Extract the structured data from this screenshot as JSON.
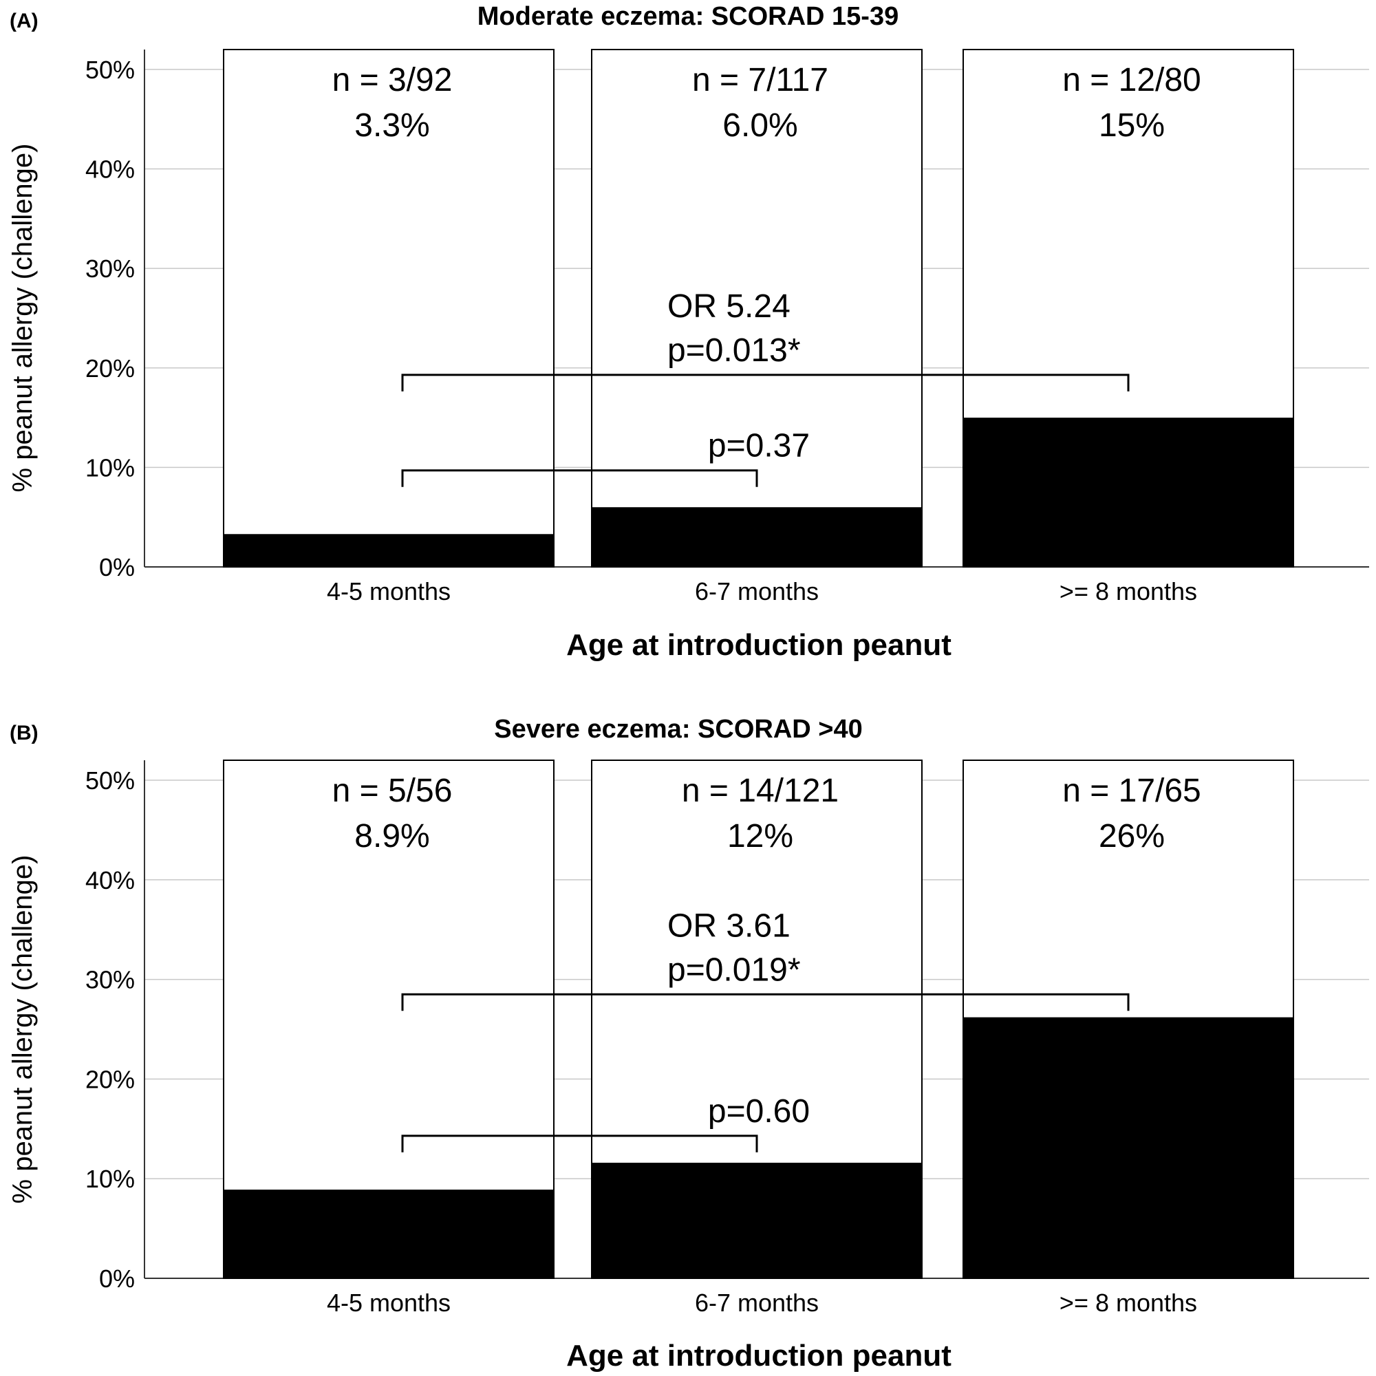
{
  "chart_data": [
    {
      "type": "bar",
      "panel": "(A)",
      "title": "Moderate eczema: SCORAD 15-39",
      "xlabel": "Age at introduction peanut",
      "ylabel": "% peanut allergy (challenge)",
      "ylim": [
        0,
        52
      ],
      "yticks": [
        "0%",
        "10%",
        "20%",
        "30%",
        "40%",
        "50%"
      ],
      "ytick_values": [
        0,
        10,
        20,
        30,
        40,
        50
      ],
      "grid": true,
      "categories": [
        "4-5 months",
        "6-7 months",
        ">= 8 months"
      ],
      "values": [
        3.3,
        6.0,
        15
      ],
      "bar_labels": [
        {
          "n": "n = 3/92",
          "pct": "3.3%"
        },
        {
          "n": "n = 7/117",
          "pct": "6.0%"
        },
        {
          "n": "n = 12/80",
          "pct": "15%"
        }
      ],
      "comparisons": [
        {
          "from": 0,
          "to": 2,
          "level": 19.3,
          "lines": [
            "OR 5.24",
            "p=0.013*"
          ]
        },
        {
          "from": 0,
          "to": 1,
          "level": 9.7,
          "lines": [
            "p=0.37"
          ]
        }
      ]
    },
    {
      "type": "bar",
      "panel": "(B)",
      "title": "Severe eczema: SCORAD >40",
      "xlabel": "Age at introduction peanut",
      "ylabel": "% peanut allergy (challenge)",
      "ylim": [
        0,
        52
      ],
      "yticks": [
        "0%",
        "10%",
        "20%",
        "30%",
        "40%",
        "50%"
      ],
      "ytick_values": [
        0,
        10,
        20,
        30,
        40,
        50
      ],
      "grid": true,
      "categories": [
        "4-5 months",
        "6-7 months",
        ">= 8 months"
      ],
      "values": [
        8.9,
        11.6,
        26.2
      ],
      "bar_labels": [
        {
          "n": "n = 5/56",
          "pct": "8.9%"
        },
        {
          "n": "n = 14/121",
          "pct": "12%"
        },
        {
          "n": "n = 17/65",
          "pct": "26%"
        }
      ],
      "comparisons": [
        {
          "from": 0,
          "to": 2,
          "level": 28.5,
          "lines": [
            "OR 3.61",
            "p=0.019*"
          ]
        },
        {
          "from": 0,
          "to": 1,
          "level": 14.3,
          "lines": [
            "p=0.60"
          ]
        }
      ]
    }
  ]
}
